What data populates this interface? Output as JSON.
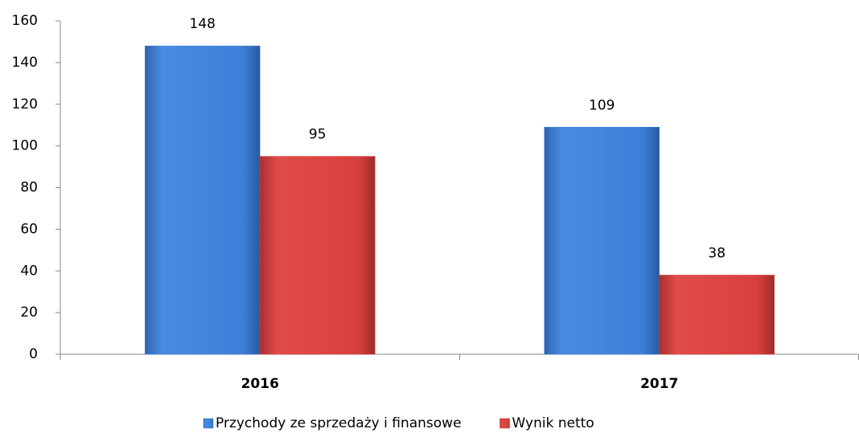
{
  "chart_data": {
    "type": "bar",
    "categories": [
      "2016",
      "2017"
    ],
    "series": [
      {
        "name": "Przychody ze sprzedaży i finansowe",
        "color": "#3d7fd8",
        "values": [
          148,
          109
        ]
      },
      {
        "name": "Wynik netto",
        "color": "#d8403e",
        "values": [
          95,
          38
        ]
      }
    ],
    "ylim": [
      0,
      160
    ],
    "yticks": [
      0,
      20,
      40,
      60,
      80,
      100,
      120,
      140,
      160
    ],
    "legend": "bottom"
  }
}
